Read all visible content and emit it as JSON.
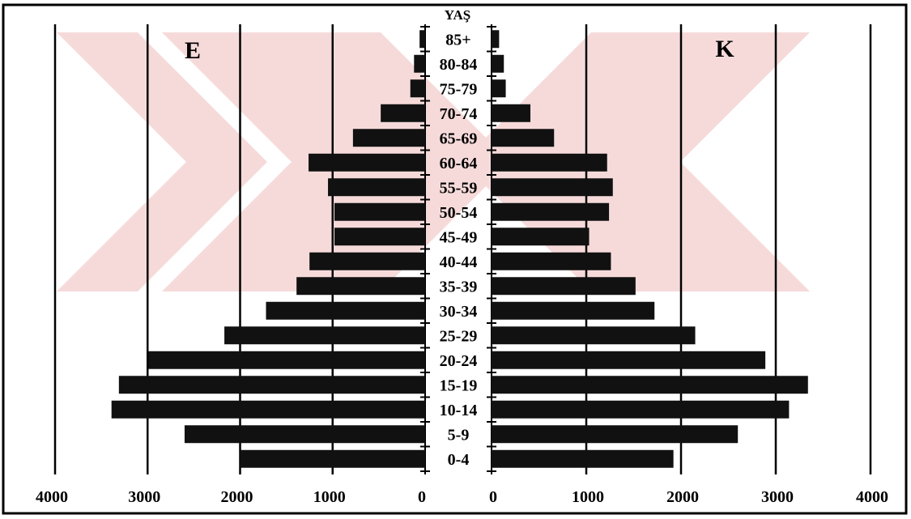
{
  "chart_data": {
    "type": "bar",
    "orientation": "population-pyramid",
    "y_title": "YAŞ",
    "left_label": "E",
    "right_label": "K",
    "categories": [
      "85+",
      "80-84",
      "75-79",
      "70-74",
      "65-69",
      "60-64",
      "55-59",
      "50-54",
      "45-49",
      "40-44",
      "35-39",
      "30-34",
      "25-29",
      "20-24",
      "15-19",
      "10-14",
      "5-9",
      "0-4"
    ],
    "series": [
      {
        "name": "E",
        "values": [
          60,
          120,
          160,
          480,
          780,
          1260,
          1050,
          980,
          980,
          1250,
          1390,
          1720,
          2170,
          2990,
          3310,
          3390,
          2600,
          2000
        ]
      },
      {
        "name": "K",
        "values": [
          80,
          130,
          150,
          410,
          660,
          1220,
          1280,
          1240,
          1030,
          1260,
          1520,
          1720,
          2150,
          2890,
          3340,
          3140,
          2600,
          1920
        ]
      }
    ],
    "left_ticks": [
      "4000",
      "3000",
      "2000",
      "1000",
      "0"
    ],
    "right_ticks": [
      "0",
      "1000",
      "2000",
      "3000",
      "4000"
    ],
    "xlim": [
      0,
      4000
    ],
    "grid": true,
    "colors": {
      "bar": "#111111",
      "watermark": "#f6dada"
    }
  }
}
